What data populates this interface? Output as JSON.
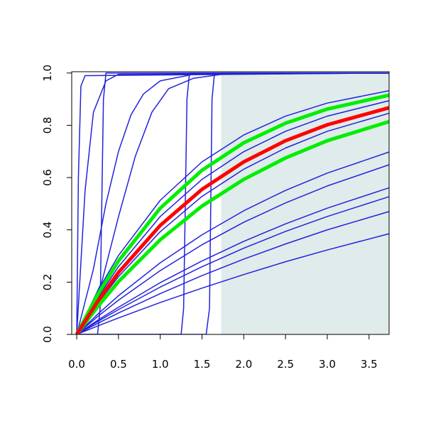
{
  "chart_data": {
    "type": "line",
    "xlim": [
      -0.06,
      3.74
    ],
    "ylim": [
      0,
      1.005
    ],
    "xticks": [
      {
        "value": 0,
        "label": "0.0"
      },
      {
        "value": 0.5,
        "label": "0.5"
      },
      {
        "value": 1,
        "label": "1.0"
      },
      {
        "value": 1.5,
        "label": "1.5"
      },
      {
        "value": 2,
        "label": "2.0"
      },
      {
        "value": 2.5,
        "label": "2.5"
      },
      {
        "value": 3,
        "label": "3.0"
      },
      {
        "value": 3.5,
        "label": "3.5"
      }
    ],
    "yticks": [
      {
        "value": 0,
        "label": "0.0"
      },
      {
        "value": 0.2,
        "label": "0.2"
      },
      {
        "value": 0.4,
        "label": "0.4"
      },
      {
        "value": 0.6,
        "label": "0.6"
      },
      {
        "value": 0.8,
        "label": "0.8"
      },
      {
        "value": 1,
        "label": "1.0"
      }
    ],
    "shaded_region": {
      "x": [
        1.73,
        3.74
      ],
      "color": "#dfeceb"
    },
    "x": [
      0,
      0.25,
      0.5,
      1,
      1.5,
      2,
      2.5,
      3,
      3.75
    ],
    "series": [
      {
        "color": "#2222dd",
        "linewidth": 1.5,
        "values": [
          0,
          0.165,
          0.302,
          0.513,
          0.66,
          0.763,
          0.835,
          0.885,
          0.933
        ]
      },
      {
        "color": "#2222dd",
        "linewidth": 1.5,
        "values": [
          0,
          0.139,
          0.259,
          0.451,
          0.593,
          0.699,
          0.777,
          0.835,
          0.895
        ]
      },
      {
        "color": "#2222dd",
        "linewidth": 1.5,
        "values": [
          0,
          0.118,
          0.221,
          0.393,
          0.528,
          0.632,
          0.713,
          0.777,
          0.847
        ]
      },
      {
        "color": "#2222dd",
        "linewidth": 1.5,
        "values": [
          0,
          0.077,
          0.148,
          0.274,
          0.381,
          0.473,
          0.551,
          0.617,
          0.699
        ]
      },
      {
        "color": "#2222dd",
        "linewidth": 1.5,
        "values": [
          0,
          0.068,
          0.131,
          0.244,
          0.343,
          0.429,
          0.503,
          0.568,
          0.65
        ]
      },
      {
        "color": "#2222dd",
        "linewidth": 1.5,
        "values": [
          0,
          0.054,
          0.104,
          0.198,
          0.281,
          0.356,
          0.423,
          0.483,
          0.562
        ]
      },
      {
        "color": "#2222dd",
        "linewidth": 1.5,
        "values": [
          0,
          0.049,
          0.095,
          0.181,
          0.259,
          0.33,
          0.394,
          0.451,
          0.528
        ]
      },
      {
        "color": "#2222dd",
        "linewidth": 1.5,
        "values": [
          0,
          0.042,
          0.082,
          0.156,
          0.225,
          0.288,
          0.346,
          0.4,
          0.471
        ]
      },
      {
        "color": "#2222dd",
        "linewidth": 1.5,
        "values": [
          0,
          0.032,
          0.063,
          0.122,
          0.177,
          0.229,
          0.278,
          0.323,
          0.386
        ]
      },
      {
        "color": "#2222dd",
        "linewidth": 1.5,
        "x": [
          0,
          0.02,
          0.05,
          0.1,
          3.75
        ],
        "values": [
          0,
          0.6,
          0.95,
          0.99,
          1
        ]
      },
      {
        "color": "#2222dd",
        "linewidth": 1.5,
        "x": [
          0,
          0.1,
          0.2,
          0.35,
          0.5,
          3.75
        ],
        "values": [
          0,
          0.55,
          0.85,
          0.97,
          0.995,
          1
        ]
      },
      {
        "color": "#2222dd",
        "linewidth": 1.5,
        "x": [
          0,
          0.25,
          0.28,
          0.32,
          0.35,
          3.75
        ],
        "values": [
          0,
          0,
          0.1,
          0.9,
          1,
          1
        ]
      },
      {
        "color": "#2222dd",
        "linewidth": 1.5,
        "x": [
          0,
          0.2,
          0.35,
          0.5,
          0.65,
          0.8,
          1,
          1.4,
          3.75
        ],
        "values": [
          0,
          0.25,
          0.5,
          0.7,
          0.84,
          0.92,
          0.97,
          0.995,
          1
        ]
      },
      {
        "color": "#2222dd",
        "linewidth": 1.5,
        "x": [
          0,
          0.3,
          0.5,
          0.7,
          0.9,
          1.1,
          1.4,
          1.8,
          3.75
        ],
        "values": [
          0,
          0.2,
          0.45,
          0.68,
          0.85,
          0.94,
          0.98,
          0.998,
          1
        ]
      },
      {
        "color": "#2222dd",
        "linewidth": 1.5,
        "x": [
          0,
          1.25,
          1.28,
          1.32,
          1.35,
          3.75
        ],
        "values": [
          0,
          0,
          0.1,
          0.9,
          1,
          1
        ]
      },
      {
        "color": "#2222dd",
        "linewidth": 1.5,
        "x": [
          0,
          1.55,
          1.59,
          1.62,
          1.65,
          3.75
        ],
        "values": [
          0,
          0,
          0.1,
          0.9,
          1,
          1
        ]
      },
      {
        "color": "#00ee00",
        "linewidth": 5,
        "values": [
          0,
          0.152,
          0.281,
          0.483,
          0.628,
          0.733,
          0.808,
          0.862,
          0.916
        ]
      },
      {
        "color": "#00ee00",
        "linewidth": 5,
        "values": [
          0,
          0.106,
          0.202,
          0.362,
          0.491,
          0.593,
          0.675,
          0.741,
          0.815
        ]
      },
      {
        "color": "#ff0000",
        "linewidth": 5,
        "values": [
          0,
          0.126,
          0.237,
          0.417,
          0.555,
          0.66,
          0.741,
          0.802,
          0.868
        ]
      }
    ]
  }
}
